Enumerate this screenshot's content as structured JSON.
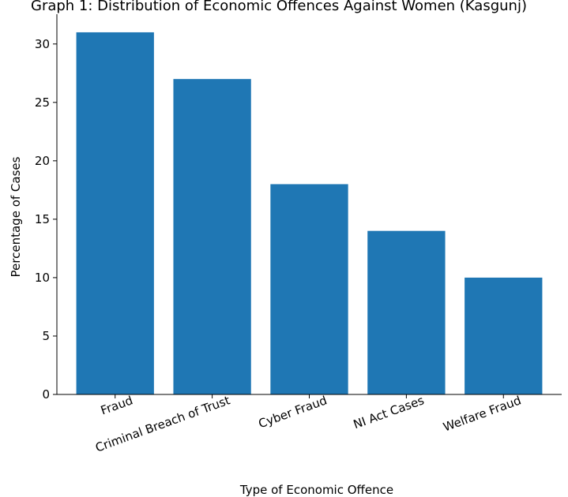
{
  "chart_data": {
    "type": "bar",
    "title": "Graph 1: Distribution of Economic Offences Against Women (Kasgunj)",
    "xlabel": "Type of Economic Offence",
    "ylabel": "Percentage of Cases",
    "categories": [
      "Fraud",
      "Criminal Breach of Trust",
      "Cyber Fraud",
      "NI Act Cases",
      "Welfare Fraud"
    ],
    "values": [
      31,
      27,
      18,
      14,
      10
    ],
    "ylim": [
      0,
      32.55
    ],
    "yticks": [
      0,
      5,
      10,
      15,
      20,
      25,
      30
    ],
    "bar_color": "#1f77b4",
    "grid": false,
    "legend": "none"
  }
}
